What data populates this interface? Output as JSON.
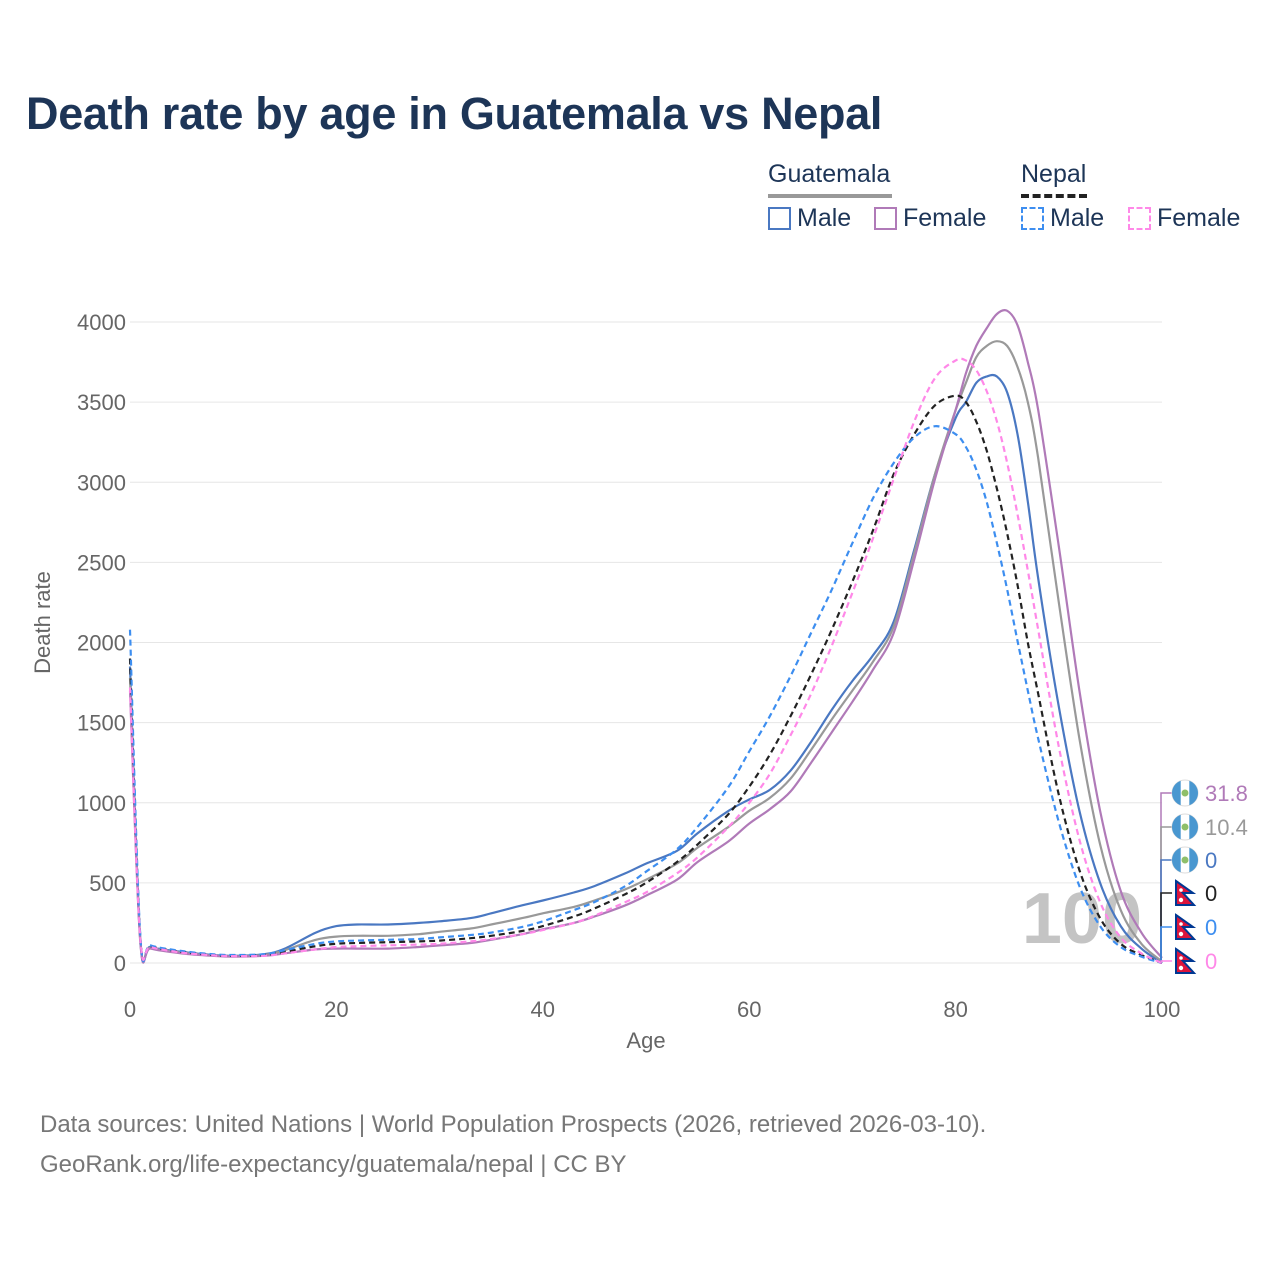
{
  "title": "Death rate by age in Guatemala vs Nepal",
  "legend": {
    "groups": [
      {
        "name": "Guatemala",
        "line_style": "solid",
        "line_color": "#999999",
        "items": [
          {
            "label": "Male",
            "color": "#4a78c2",
            "style": "solid"
          },
          {
            "label": "Female",
            "color": "#b07ab8",
            "style": "solid"
          }
        ]
      },
      {
        "name": "Nepal",
        "line_style": "dashed",
        "line_color": "#222222",
        "items": [
          {
            "label": "Male",
            "color": "#3d8ef0",
            "style": "dashed"
          },
          {
            "label": "Female",
            "color": "#ff88e8",
            "style": "dashed"
          }
        ]
      }
    ]
  },
  "footer": {
    "line1": "Data sources: United Nations | World Population Prospects (2026, retrieved 2026-03-10).",
    "line2": "GeoRank.org/life-expectancy/guatemala/nepal | CC BY"
  },
  "chart_data": {
    "type": "line",
    "title": "Death rate by age in Guatemala vs Nepal",
    "xlabel": "Age",
    "ylabel": "Death rate",
    "xlim": [
      0,
      100
    ],
    "ylim": [
      0,
      4000
    ],
    "xticks": [
      0,
      20,
      40,
      60,
      80,
      100
    ],
    "yticks": [
      0,
      500,
      1000,
      1500,
      2000,
      2500,
      3000,
      3500,
      4000
    ],
    "grid": true,
    "current_age_label": "100",
    "x": [
      0,
      1,
      2,
      5,
      8,
      10,
      13,
      15,
      18,
      20,
      22,
      25,
      28,
      30,
      33,
      35,
      38,
      40,
      43,
      45,
      48,
      50,
      53,
      55,
      58,
      60,
      62,
      64,
      66,
      68,
      70,
      72,
      74,
      76,
      78,
      80,
      81,
      82,
      83,
      84,
      85,
      86,
      87,
      88,
      90,
      92,
      94,
      96,
      98,
      100
    ],
    "series": [
      {
        "name": "Guatemala Male",
        "country": "Guatemala",
        "sex": "Male",
        "color": "#4a78c2",
        "dash": false,
        "values": [
          1850,
          150,
          100,
          70,
          50,
          45,
          55,
          90,
          190,
          230,
          240,
          240,
          250,
          260,
          280,
          310,
          360,
          390,
          440,
          480,
          560,
          620,
          700,
          810,
          950,
          1020,
          1080,
          1200,
          1380,
          1580,
          1760,
          1920,
          2130,
          2580,
          3050,
          3400,
          3500,
          3620,
          3660,
          3660,
          3560,
          3300,
          2880,
          2400,
          1600,
          950,
          500,
          230,
          90,
          0
        ]
      },
      {
        "name": "Guatemala Total",
        "country": "Guatemala",
        "sex": "Total",
        "color": "#999999",
        "dash": false,
        "values": [
          1780,
          140,
          95,
          65,
          47,
          42,
          50,
          80,
          145,
          165,
          170,
          170,
          180,
          195,
          215,
          240,
          280,
          310,
          350,
          390,
          460,
          520,
          620,
          720,
          850,
          950,
          1030,
          1150,
          1330,
          1520,
          1700,
          1880,
          2100,
          2560,
          3050,
          3450,
          3620,
          3780,
          3850,
          3880,
          3850,
          3720,
          3500,
          3150,
          2250,
          1400,
          740,
          330,
          120,
          10.4
        ]
      },
      {
        "name": "Guatemala Female",
        "country": "Guatemala",
        "sex": "Female",
        "color": "#b07ab8",
        "dash": false,
        "values": [
          1700,
          130,
          90,
          60,
          45,
          40,
          45,
          60,
          85,
          90,
          90,
          90,
          100,
          110,
          125,
          145,
          180,
          210,
          250,
          290,
          360,
          420,
          520,
          630,
          760,
          870,
          960,
          1070,
          1250,
          1440,
          1630,
          1830,
          2060,
          2520,
          3020,
          3450,
          3680,
          3850,
          3960,
          4050,
          4070,
          3980,
          3750,
          3450,
          2600,
          1700,
          950,
          450,
          190,
          31.8
        ]
      },
      {
        "name": "Nepal Total",
        "country": "Nepal",
        "sex": "Total",
        "color": "#222222",
        "dash": true,
        "values": [
          1900,
          160,
          105,
          70,
          50,
          45,
          50,
          70,
          105,
          120,
          125,
          130,
          135,
          140,
          155,
          170,
          200,
          230,
          290,
          340,
          430,
          500,
          630,
          740,
          930,
          1100,
          1300,
          1540,
          1800,
          2080,
          2380,
          2700,
          3050,
          3300,
          3480,
          3540,
          3500,
          3380,
          3200,
          2960,
          2680,
          2360,
          2000,
          1680,
          1050,
          580,
          280,
          120,
          50,
          0
        ]
      },
      {
        "name": "Nepal Male",
        "country": "Nepal",
        "sex": "Male",
        "color": "#3d8ef0",
        "dash": true,
        "values": [
          2080,
          170,
          110,
          75,
          55,
          50,
          55,
          80,
          120,
          135,
          140,
          145,
          150,
          160,
          175,
          190,
          225,
          260,
          330,
          380,
          480,
          570,
          710,
          850,
          1100,
          1320,
          1540,
          1790,
          2060,
          2330,
          2620,
          2900,
          3120,
          3280,
          3350,
          3300,
          3220,
          3080,
          2880,
          2620,
          2330,
          2010,
          1700,
          1400,
          880,
          480,
          230,
          100,
          40,
          0
        ]
      },
      {
        "name": "Nepal Female",
        "country": "Nepal",
        "sex": "Female",
        "color": "#ff88e8",
        "dash": true,
        "values": [
          1720,
          150,
          100,
          65,
          48,
          43,
          45,
          60,
          85,
          100,
          105,
          110,
          115,
          120,
          135,
          150,
          180,
          205,
          250,
          295,
          380,
          440,
          560,
          660,
          850,
          1000,
          1180,
          1420,
          1680,
          1980,
          2310,
          2650,
          3020,
          3380,
          3650,
          3760,
          3760,
          3700,
          3570,
          3380,
          3120,
          2800,
          2450,
          2080,
          1350,
          770,
          380,
          160,
          60,
          0
        ]
      }
    ],
    "end_labels": [
      {
        "country": "Guatemala",
        "sex": "Female",
        "value": "31.8",
        "color": "#b07ab8"
      },
      {
        "country": "Guatemala",
        "sex": "Total",
        "value": "10.4",
        "color": "#999999"
      },
      {
        "country": "Guatemala",
        "sex": "Male",
        "value": "0",
        "color": "#4a78c2"
      },
      {
        "country": "Nepal",
        "sex": "Total",
        "value": "0",
        "color": "#222222"
      },
      {
        "country": "Nepal",
        "sex": "Male",
        "value": "0",
        "color": "#3d8ef0"
      },
      {
        "country": "Nepal",
        "sex": "Female",
        "value": "0",
        "color": "#ff88e8"
      }
    ]
  }
}
